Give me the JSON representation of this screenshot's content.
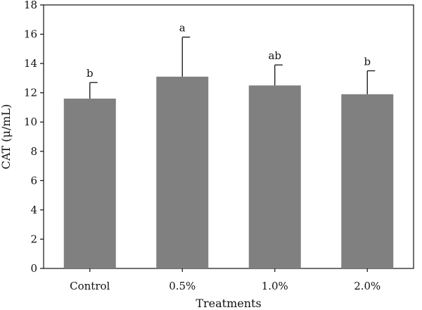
{
  "chart_data": {
    "type": "bar",
    "xlabel": "Treatments",
    "ylabel": "CAT (μ/mL)",
    "ylim": [
      0,
      18
    ],
    "yticks": [
      0,
      2,
      4,
      6,
      8,
      10,
      12,
      14,
      16,
      18
    ],
    "grid": false,
    "categories": [
      "Control",
      "0.5%",
      "1.0%",
      "2.0%"
    ],
    "values": [
      11.6,
      13.1,
      12.5,
      11.9
    ],
    "error_upper": [
      1.1,
      2.7,
      1.4,
      1.6
    ],
    "significance_labels": [
      "b",
      "a",
      "ab",
      "b"
    ],
    "bar_color": "#808080"
  }
}
